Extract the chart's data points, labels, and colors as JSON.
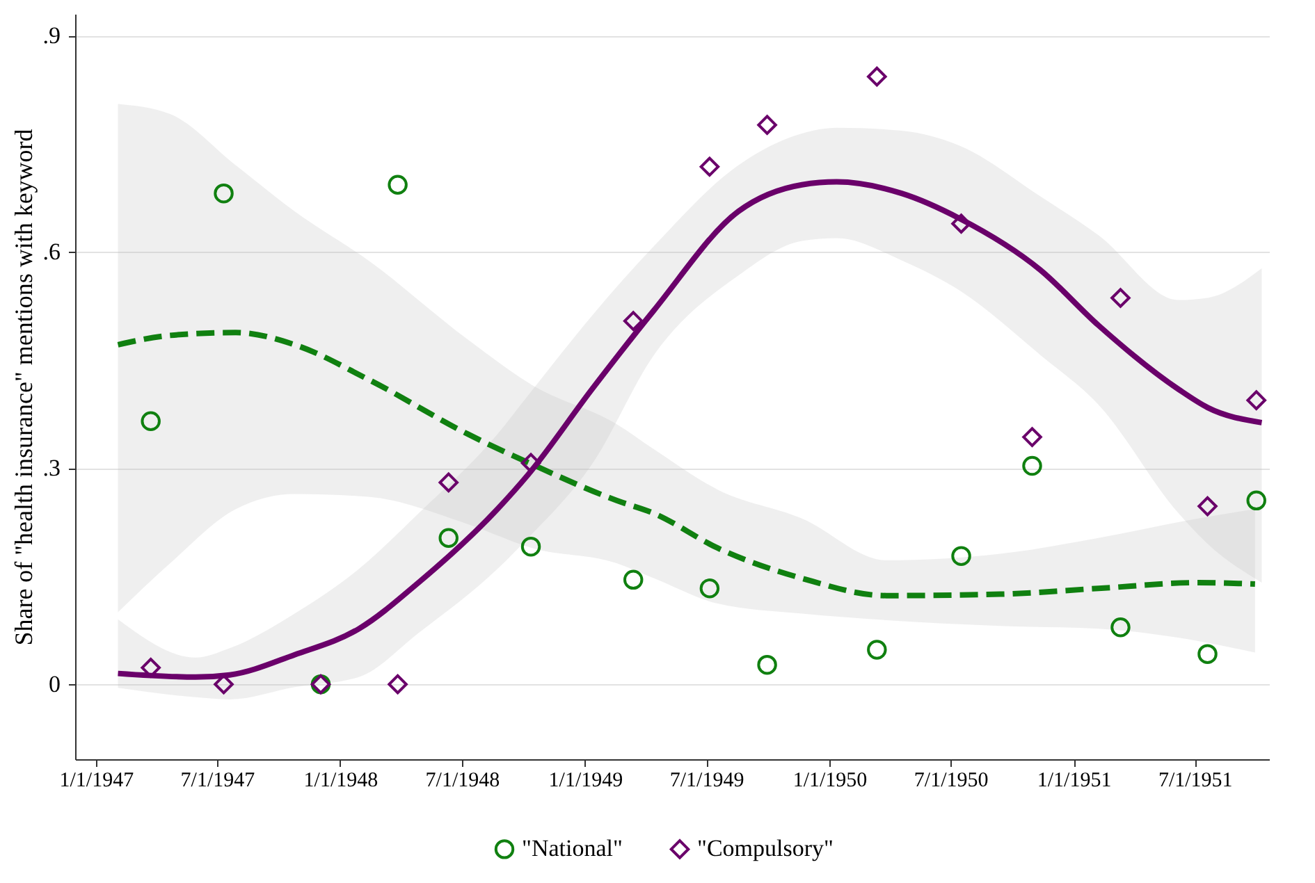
{
  "chart_data": {
    "type": "scatter",
    "ylabel": "Share of \"health insurance\" mentions with keyword",
    "xlim": [
      "1946-12-01",
      "1951-10-20"
    ],
    "ylim": [
      -0.104,
      0.93
    ],
    "xticks": [
      {
        "value": "1947-01-01",
        "label": "1/1/1947"
      },
      {
        "value": "1947-07-01",
        "label": "7/1/1947"
      },
      {
        "value": "1948-01-01",
        "label": "1/1/1948"
      },
      {
        "value": "1948-07-01",
        "label": "7/1/1948"
      },
      {
        "value": "1949-01-01",
        "label": "1/1/1949"
      },
      {
        "value": "1949-07-01",
        "label": "7/1/1949"
      },
      {
        "value": "1950-01-01",
        "label": "1/1/1950"
      },
      {
        "value": "1950-07-01",
        "label": "7/1/1950"
      },
      {
        "value": "1951-01-01",
        "label": "1/1/1951"
      },
      {
        "value": "1951-07-01",
        "label": "7/1/1951"
      }
    ],
    "yticks": [
      0,
      {
        "value": 0.3,
        "label": ".3"
      },
      {
        "value": 0.6,
        "label": ".6"
      },
      {
        "value": 0.9,
        "label": ".9"
      }
    ],
    "grid": "y",
    "legend": "bottom",
    "series": [
      {
        "type": "line",
        "color": "#108010",
        "line_style": "dashed",
        "marker": "none",
        "x": [
          "1947-02-03",
          "1947-04-22",
          "1947-07-29",
          "1947-10-25",
          "1948-02-12",
          "1948-07-10",
          "1948-10-14",
          "1949-02-17",
          "1949-04-14",
          "1949-07-18",
          "1949-11-21",
          "1950-03-27",
          "1950-09-13",
          "1951-02-07",
          "1951-07-06",
          "1951-09-29"
        ],
        "values": [
          0.471,
          0.484,
          0.488,
          0.471,
          0.423,
          0.347,
          0.305,
          0.255,
          0.237,
          0.189,
          0.147,
          0.123,
          0.125,
          0.133,
          0.141,
          0.139
        ],
        "lower": [
          0.1,
          0.168,
          0.243,
          0.264,
          0.26,
          0.222,
          0.189,
          0.168,
          0.147,
          0.112,
          0.098,
          0.089,
          0.081,
          0.077,
          0.06,
          0.044
        ],
        "upper": [
          0.805,
          0.791,
          0.72,
          0.656,
          0.588,
          0.478,
          0.415,
          0.361,
          0.326,
          0.27,
          0.23,
          0.172,
          0.181,
          0.203,
          0.23,
          0.243
        ]
      },
      {
        "type": "line",
        "color": "#6a006a",
        "line_style": "solid",
        "marker": "none",
        "x": [
          "1947-02-03",
          "1947-05-30",
          "1947-07-20",
          "1947-10-25",
          "1948-01-29",
          "1948-04-27",
          "1948-08-23",
          "1948-10-08",
          "1949-01-11",
          "1949-04-14",
          "1949-08-18",
          "1949-11-21",
          "1950-01-12",
          "1950-04-19",
          "1950-07-15",
          "1950-11-12",
          "1951-02-07",
          "1951-06-07",
          "1951-07-20",
          "1951-10-09"
        ],
        "values": [
          0.015,
          0.01,
          0.013,
          0.041,
          0.077,
          0.141,
          0.243,
          0.291,
          0.409,
          0.519,
          0.656,
          0.693,
          0.697,
          0.681,
          0.646,
          0.575,
          0.498,
          0.409,
          0.384,
          0.363
        ],
        "lower": [
          -0.005,
          -0.018,
          -0.021,
          -0.004,
          0.01,
          0.071,
          0.16,
          0.203,
          0.305,
          0.457,
          0.567,
          0.615,
          0.619,
          0.588,
          0.546,
          0.457,
          0.388,
          0.237,
          0.195,
          0.141
        ],
        "upper": [
          0.09,
          0.037,
          0.05,
          0.098,
          0.16,
          0.237,
          0.347,
          0.401,
          0.511,
          0.608,
          0.72,
          0.764,
          0.772,
          0.768,
          0.747,
          0.677,
          0.623,
          0.533,
          0.536,
          0.577
        ]
      },
      {
        "name": "\"National\"",
        "color": "#108010",
        "marker": "circle",
        "x": [
          "1947-03-24",
          "1947-07-11",
          "1947-12-03",
          "1948-03-27",
          "1948-06-11",
          "1948-10-12",
          "1949-03-14",
          "1949-07-06",
          "1949-09-30",
          "1950-03-13",
          "1950-07-17",
          "1950-10-31",
          "1951-03-12",
          "1951-07-20",
          "1951-10-01"
        ],
        "values": [
          0.365,
          0.681,
          0,
          0.693,
          0.203,
          0.191,
          0.145,
          0.133,
          0.027,
          0.048,
          0.178,
          0.303,
          0.079,
          0.042,
          0.255
        ]
      },
      {
        "name": "\"Compulsory\"",
        "color": "#6a006a",
        "marker": "diamond",
        "x": [
          "1947-03-24",
          "1947-07-11",
          "1947-12-03",
          "1948-03-27",
          "1948-06-11",
          "1948-10-12",
          "1949-03-14",
          "1949-07-06",
          "1949-09-30",
          "1950-03-13",
          "1950-07-17",
          "1950-10-31",
          "1951-03-12",
          "1951-07-20",
          "1951-10-01"
        ],
        "values": [
          0.023,
          0,
          0,
          0,
          0.28,
          0.307,
          0.504,
          0.718,
          0.776,
          0.843,
          0.639,
          0.343,
          0.536,
          0.247,
          0.394
        ]
      }
    ]
  }
}
